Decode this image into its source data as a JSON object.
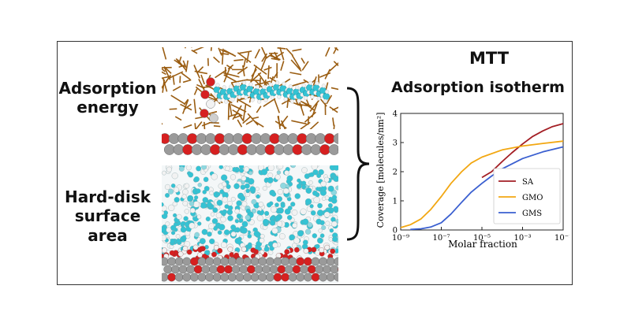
{
  "labels": {
    "adsorption_energy": "Adsorption energy",
    "hard_disk_surface_area": "Hard-disk surface area",
    "mtt": "MTT",
    "adsorption_isotherm": "Adsorption isotherm"
  },
  "colors": {
    "SA": "#a31e24",
    "GMO": "#f2a712",
    "GMS": "#3a5fd0",
    "oxygen": "#d62020",
    "carbon_surf": "#9a9a9a",
    "hydrogen": "#f2f2f2",
    "tail": "#34c3d4",
    "oil": "#9a5d12"
  },
  "chart_data": {
    "type": "line",
    "xlabel": "Molar fraction",
    "ylabel": "Coverage [molecules/nm²]",
    "xscale": "log",
    "xlim": [
      1e-09,
      0.1
    ],
    "ylim": [
      0,
      4
    ],
    "xticks": [
      "10⁻⁹",
      "10⁻⁷",
      "10⁻⁵",
      "10⁻³",
      "10⁻¹"
    ],
    "yticks": [
      "0",
      "1",
      "2",
      "3",
      "4"
    ],
    "legend_position": "lower-right",
    "series": [
      {
        "name": "SA",
        "x": [
          1e-05,
          3e-05,
          0.0001,
          0.0003,
          0.001,
          0.003,
          0.01,
          0.03,
          0.1
        ],
        "y": [
          1.8,
          2.0,
          2.35,
          2.65,
          2.95,
          3.2,
          3.4,
          3.55,
          3.65
        ]
      },
      {
        "name": "GMO",
        "x": [
          1e-09,
          3e-09,
          1e-08,
          3e-08,
          1e-07,
          3e-07,
          1e-06,
          3e-06,
          1e-05,
          0.0001,
          0.001,
          0.01,
          0.1
        ],
        "y": [
          0.08,
          0.18,
          0.38,
          0.7,
          1.15,
          1.6,
          2.0,
          2.3,
          2.5,
          2.75,
          2.88,
          2.97,
          3.05
        ]
      },
      {
        "name": "GMS",
        "x": [
          3e-09,
          1e-08,
          3e-08,
          1e-07,
          3e-07,
          1e-06,
          3e-06,
          1e-05,
          3e-05,
          0.0001,
          0.001,
          0.01,
          0.1
        ],
        "y": [
          0.02,
          0.04,
          0.1,
          0.25,
          0.55,
          0.95,
          1.3,
          1.6,
          1.85,
          2.1,
          2.45,
          2.68,
          2.85
        ]
      }
    ]
  }
}
